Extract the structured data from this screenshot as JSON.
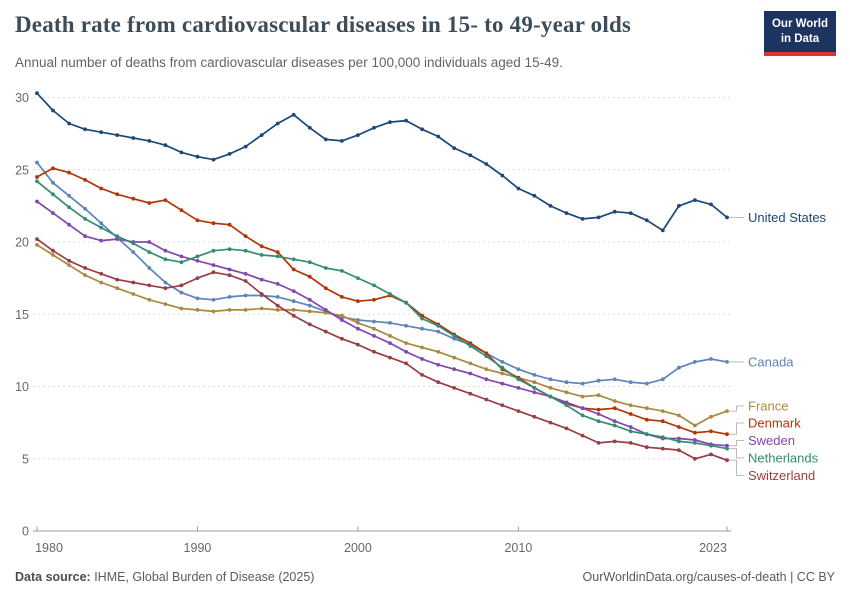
{
  "header": {
    "title": "Death rate from cardiovascular diseases in 15- to 49-year olds",
    "subtitle": "Annual number of deaths from cardiovascular diseases per 100,000 individuals aged 15-49.",
    "logo": {
      "line1": "Our World",
      "line2": "in Data",
      "bg_color": "#1d3360",
      "accent_color": "#d9352c"
    }
  },
  "chart_data": {
    "type": "line",
    "title": "Death rate from cardiovascular diseases in 15- to 49-year olds",
    "xlabel": "",
    "ylabel": "",
    "ylim": [
      0,
      30
    ],
    "yticks": [
      0,
      5,
      10,
      15,
      20,
      25,
      30
    ],
    "xticks": [
      1980,
      1990,
      2000,
      2010,
      2023
    ],
    "grid": true,
    "legend_position": "right",
    "grid_color": "#dcdcdc",
    "axis_color": "#9c9c9c",
    "x": [
      1980,
      1981,
      1982,
      1983,
      1984,
      1985,
      1986,
      1987,
      1988,
      1989,
      1990,
      1991,
      1992,
      1993,
      1994,
      1995,
      1996,
      1997,
      1998,
      1999,
      2000,
      2001,
      2002,
      2003,
      2004,
      2005,
      2006,
      2007,
      2008,
      2009,
      2010,
      2011,
      2012,
      2013,
      2014,
      2015,
      2016,
      2017,
      2018,
      2019,
      2020,
      2021,
      2022,
      2023
    ],
    "series": [
      {
        "name": "United States",
        "color": "#1d4777",
        "label_y": 217.5,
        "values": [
          30.3,
          29.1,
          28.2,
          27.8,
          27.6,
          27.4,
          27.2,
          27.0,
          26.7,
          26.2,
          25.9,
          25.7,
          26.1,
          26.6,
          27.4,
          28.2,
          28.8,
          27.9,
          27.1,
          27.0,
          27.4,
          27.9,
          28.3,
          28.4,
          27.8,
          27.3,
          26.5,
          26.0,
          25.4,
          24.6,
          23.7,
          23.2,
          22.5,
          22.0,
          21.6,
          21.7,
          22.1,
          22.0,
          21.5,
          20.8,
          22.5,
          22.9,
          22.6,
          21.7
        ]
      },
      {
        "name": "Canada",
        "color": "#5f84b8",
        "label_y": 362,
        "values": [
          25.5,
          24.1,
          23.2,
          22.3,
          21.3,
          20.3,
          19.3,
          18.2,
          17.2,
          16.5,
          16.1,
          16.0,
          16.2,
          16.3,
          16.3,
          16.2,
          15.9,
          15.6,
          15.2,
          14.8,
          14.6,
          14.5,
          14.4,
          14.2,
          14.0,
          13.8,
          13.3,
          12.9,
          12.3,
          11.7,
          11.2,
          10.8,
          10.5,
          10.3,
          10.2,
          10.4,
          10.5,
          10.3,
          10.2,
          10.5,
          11.3,
          11.7,
          11.9,
          11.7
        ]
      },
      {
        "name": "France",
        "color": "#ad8840",
        "label_y": 406,
        "values": [
          19.8,
          19.1,
          18.4,
          17.7,
          17.2,
          16.8,
          16.4,
          16.0,
          15.7,
          15.4,
          15.3,
          15.2,
          15.3,
          15.3,
          15.4,
          15.3,
          15.3,
          15.2,
          15.1,
          14.9,
          14.4,
          14.0,
          13.5,
          13.0,
          12.7,
          12.4,
          12.0,
          11.6,
          11.2,
          10.9,
          10.6,
          10.3,
          9.9,
          9.6,
          9.3,
          9.4,
          9.0,
          8.7,
          8.5,
          8.3,
          8.0,
          7.3,
          7.9,
          8.3
        ]
      },
      {
        "name": "Denmark",
        "color": "#b13507",
        "label_y": 423,
        "values": [
          24.5,
          25.1,
          24.8,
          24.3,
          23.7,
          23.3,
          23.0,
          22.7,
          22.9,
          22.2,
          21.5,
          21.3,
          21.2,
          20.4,
          19.7,
          19.3,
          18.1,
          17.6,
          16.8,
          16.2,
          15.9,
          16.0,
          16.3,
          15.8,
          14.9,
          14.3,
          13.6,
          13.0,
          12.3,
          11.2,
          10.6,
          9.9,
          9.3,
          8.8,
          8.5,
          8.4,
          8.5,
          8.1,
          7.7,
          7.6,
          7.2,
          6.8,
          6.9,
          6.7
        ]
      },
      {
        "name": "Sweden",
        "color": "#8347ad",
        "label_y": 440.5,
        "values": [
          22.8,
          22.0,
          21.2,
          20.4,
          20.1,
          20.2,
          20.0,
          20.0,
          19.4,
          19.0,
          18.7,
          18.4,
          18.1,
          17.8,
          17.4,
          17.1,
          16.6,
          16.0,
          15.3,
          14.6,
          14.0,
          13.5,
          13.0,
          12.4,
          11.9,
          11.5,
          11.2,
          10.9,
          10.5,
          10.2,
          9.9,
          9.6,
          9.3,
          8.9,
          8.5,
          8.1,
          7.6,
          7.2,
          6.7,
          6.4,
          6.4,
          6.3,
          6.0,
          5.9
        ]
      },
      {
        "name": "Netherlands",
        "color": "#358c72",
        "label_y": 458,
        "values": [
          24.2,
          23.3,
          22.4,
          21.6,
          21.0,
          20.4,
          19.9,
          19.3,
          18.8,
          18.6,
          19.0,
          19.4,
          19.5,
          19.4,
          19.1,
          19.0,
          18.8,
          18.6,
          18.2,
          18.0,
          17.5,
          17.0,
          16.4,
          15.8,
          14.7,
          14.2,
          13.5,
          12.8,
          12.1,
          11.3,
          10.5,
          9.9,
          9.3,
          8.7,
          8.0,
          7.6,
          7.3,
          6.9,
          6.7,
          6.5,
          6.2,
          6.1,
          5.9,
          5.7
        ]
      },
      {
        "name": "Switzerland",
        "color": "#993d47",
        "label_y": 475.5,
        "values": [
          20.2,
          19.4,
          18.7,
          18.2,
          17.8,
          17.4,
          17.2,
          17.0,
          16.8,
          17.0,
          17.5,
          17.9,
          17.7,
          17.3,
          16.4,
          15.6,
          14.9,
          14.3,
          13.8,
          13.3,
          12.9,
          12.4,
          12.0,
          11.6,
          10.8,
          10.3,
          9.9,
          9.5,
          9.1,
          8.7,
          8.3,
          7.9,
          7.5,
          7.1,
          6.6,
          6.1,
          6.2,
          6.1,
          5.8,
          5.7,
          5.6,
          5.0,
          5.3,
          4.9
        ]
      }
    ]
  },
  "footer": {
    "datasource_label": "Data source:",
    "datasource": " IHME, Global Burden of Disease (2025)",
    "link": "OurWorldinData.org/causes-of-death",
    "separator": " | ",
    "license": "CC BY"
  }
}
